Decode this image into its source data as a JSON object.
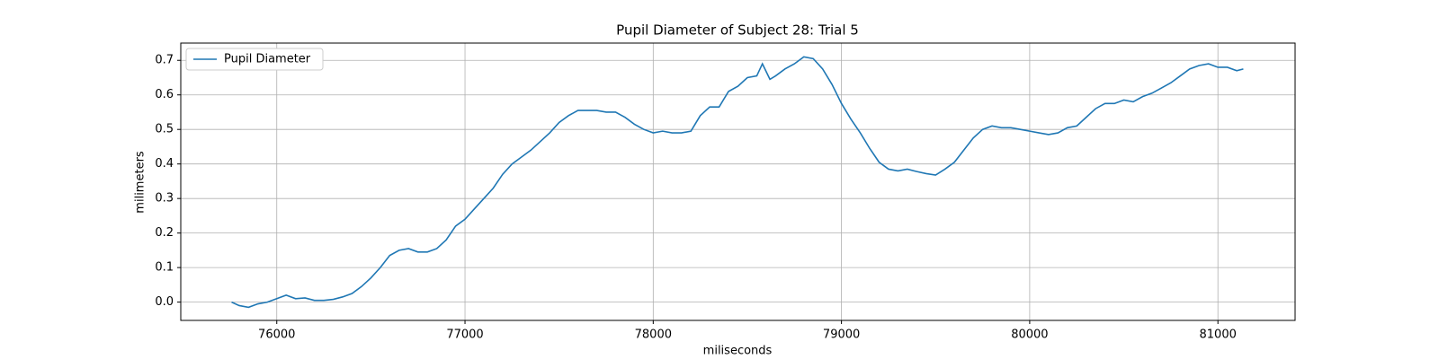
{
  "chart_data": {
    "type": "line",
    "title": "Pupil Diameter of Subject 28: Trial 5",
    "x_label": "miliseconds",
    "y_label": "milimeters",
    "x": [
      75760,
      75800,
      75850,
      75900,
      75950,
      76000,
      76050,
      76100,
      76150,
      76200,
      76250,
      76300,
      76350,
      76400,
      76450,
      76500,
      76550,
      76600,
      76650,
      76700,
      76750,
      76800,
      76850,
      76900,
      76950,
      77000,
      77050,
      77100,
      77150,
      77200,
      77250,
      77300,
      77350,
      77400,
      77450,
      77500,
      77550,
      77600,
      77650,
      77700,
      77750,
      77800,
      77850,
      77900,
      77950,
      78000,
      78050,
      78100,
      78150,
      78200,
      78250,
      78300,
      78350,
      78400,
      78450,
      78500,
      78550,
      78580,
      78620,
      78650,
      78700,
      78750,
      78800,
      78850,
      78900,
      78950,
      79000,
      79050,
      79100,
      79150,
      79200,
      79250,
      79300,
      79350,
      79400,
      79450,
      79500,
      79550,
      79600,
      79650,
      79700,
      79750,
      79800,
      79850,
      79900,
      79950,
      80000,
      80050,
      80100,
      80150,
      80200,
      80250,
      80300,
      80350,
      80400,
      80450,
      80500,
      80550,
      80600,
      80650,
      80700,
      80750,
      80800,
      80850,
      80900,
      80950,
      81000,
      81050,
      81100,
      81135
    ],
    "series": [
      {
        "name": "Pupil Diameter",
        "color": "#1f77b4",
        "values": [
          0.0,
          -0.01,
          -0.015,
          -0.005,
          0.0,
          0.01,
          0.02,
          0.01,
          0.012,
          0.005,
          0.005,
          0.008,
          0.015,
          0.025,
          0.045,
          0.07,
          0.1,
          0.135,
          0.15,
          0.155,
          0.145,
          0.145,
          0.155,
          0.18,
          0.22,
          0.24,
          0.27,
          0.3,
          0.33,
          0.37,
          0.4,
          0.42,
          0.44,
          0.465,
          0.49,
          0.52,
          0.54,
          0.555,
          0.555,
          0.555,
          0.55,
          0.55,
          0.535,
          0.515,
          0.5,
          0.49,
          0.495,
          0.49,
          0.49,
          0.495,
          0.54,
          0.565,
          0.565,
          0.61,
          0.625,
          0.65,
          0.655,
          0.69,
          0.645,
          0.655,
          0.675,
          0.69,
          0.71,
          0.705,
          0.675,
          0.63,
          0.575,
          0.53,
          0.49,
          0.445,
          0.405,
          0.385,
          0.38,
          0.385,
          0.378,
          0.372,
          0.368,
          0.385,
          0.405,
          0.44,
          0.475,
          0.5,
          0.51,
          0.505,
          0.505,
          0.5,
          0.495,
          0.49,
          0.485,
          0.49,
          0.505,
          0.51,
          0.535,
          0.56,
          0.575,
          0.575,
          0.585,
          0.58,
          0.595,
          0.605,
          0.62,
          0.635,
          0.655,
          0.675,
          0.685,
          0.69,
          0.68,
          0.68,
          0.67,
          0.675
        ]
      }
    ],
    "xlim": [
      75490,
      81410
    ],
    "ylim": [
      -0.053,
      0.75
    ],
    "xticks": [
      76000,
      77000,
      78000,
      79000,
      80000,
      81000
    ],
    "yticks": [
      {
        "value": 0,
        "label": "0.0"
      },
      0.1,
      0.2,
      0.3,
      0.4,
      0.5,
      0.6,
      0.7
    ],
    "grid": true,
    "legend": "upper-left"
  }
}
